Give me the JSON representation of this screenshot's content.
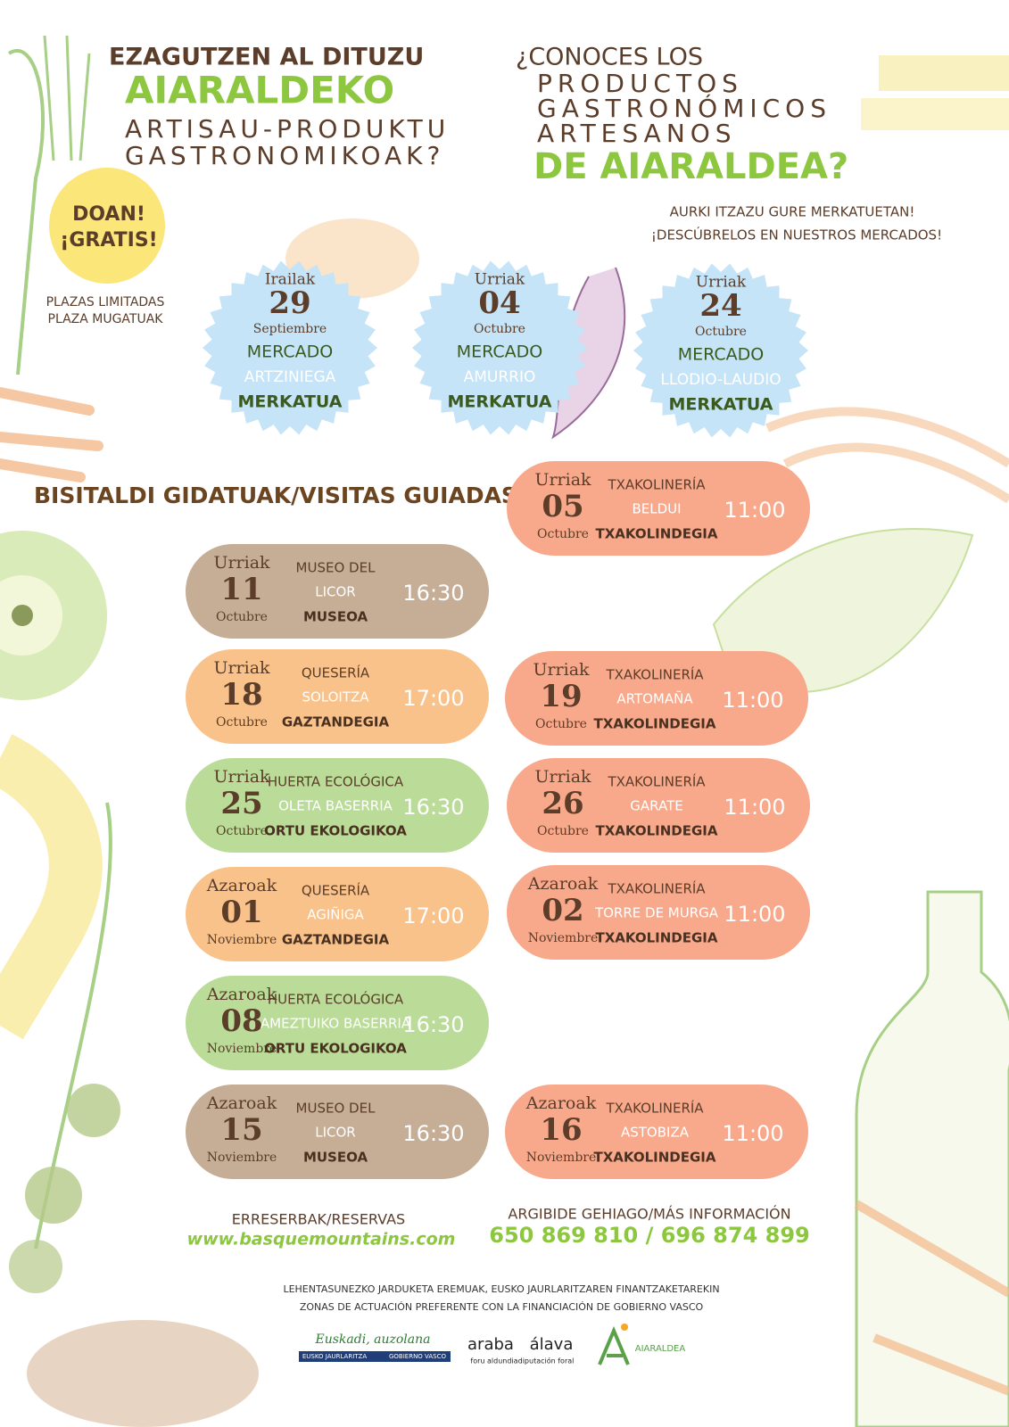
{
  "header": {
    "eu": {
      "line1": "EZAGUTZEN AL DITUZU",
      "line2": "AIARALDEKO",
      "line3": "ARTISAU-PRODUKTU",
      "line4": "GASTRONOMIKOAK?"
    },
    "es": {
      "line1": "¿CONOCES LOS",
      "line2": "PRODUCTOS",
      "line3": "GASTRONÓMICOS",
      "line4": "ARTESANOS",
      "line5": "DE AIARALDEA?"
    }
  },
  "badge": {
    "line1": "DOAN!",
    "line2": "¡GRATIS!"
  },
  "places_note": {
    "line1": "PLAZAS LIMITADAS",
    "line2": "PLAZA MUGATUAK"
  },
  "markets_intro": {
    "line1": "AURKI ITZAZU GURE MERKATUETAN!",
    "line2": "¡DESCÚBRELOS EN NUESTROS MERCADOS!"
  },
  "markets": [
    {
      "month_eu": "Irailak",
      "day": "29",
      "month_es": "Septiembre",
      "label_es": "MERCADO",
      "place": "ARTZINIEGA",
      "label_eu": "MERKATUA"
    },
    {
      "month_eu": "Urriak",
      "day": "04",
      "month_es": "Octubre",
      "label_es": "MERCADO",
      "place": "AMURRIO",
      "label_eu": "MERKATUA"
    },
    {
      "month_eu": "Urriak",
      "day": "24",
      "month_es": "Octubre",
      "label_es": "MERCADO",
      "place": "LLODIO-LAUDIO",
      "label_eu": "MERKATUA"
    }
  ],
  "visits_title": "BISITALDI GIDATUAK/VISITAS GUIADAS",
  "visits": [
    {
      "month_eu": "Urriak",
      "day": "05",
      "month_es": "Octubre",
      "type": "TXAKOLINERÍA",
      "place": "BELDUI",
      "label": "TXAKOLINDEGIA",
      "time": "11:00",
      "color": "#f8a98b"
    },
    {
      "month_eu": "Urriak",
      "day": "11",
      "month_es": "Octubre",
      "type": "MUSEO DEL",
      "place": "LICOR",
      "label": "MUSEOA",
      "time": "16:30",
      "color": "#c5ad96"
    },
    {
      "month_eu": "Urriak",
      "day": "18",
      "month_es": "Octubre",
      "type": "QUESERÍA",
      "place": "SOLOITZA",
      "label": "GAZTANDEGIA",
      "time": "17:00",
      "color": "#f9c28a"
    },
    {
      "month_eu": "Urriak",
      "day": "19",
      "month_es": "Octubre",
      "type": "TXAKOLINERÍA",
      "place": "ARTOMAÑA",
      "label": "TXAKOLINDEGIA",
      "time": "11:00",
      "color": "#f8a98b"
    },
    {
      "month_eu": "Urriak",
      "day": "25",
      "month_es": "Octubre",
      "type": "HUERTA ECOLÓGICA",
      "place": "OLETA BASERRIA",
      "label": "ORTU EKOLOGIKOA",
      "time": "16:30",
      "color": "#badc98"
    },
    {
      "month_eu": "Urriak",
      "day": "26",
      "month_es": "Octubre",
      "type": "TXAKOLINERÍA",
      "place": "GARATE",
      "label": "TXAKOLINDEGIA",
      "time": "11:00",
      "color": "#f8a98b"
    },
    {
      "month_eu": "Azaroak",
      "day": "01",
      "month_es": "Noviembre",
      "type": "QUESERÍA",
      "place": "AGIÑIGA",
      "label": "GAZTANDEGIA",
      "time": "17:00",
      "color": "#f9c28a"
    },
    {
      "month_eu": "Azaroak",
      "day": "02",
      "month_es": "Noviembre",
      "type": "TXAKOLINERÍA",
      "place": "TORRE DE MURGA",
      "label": "TXAKOLINDEGIA",
      "time": "11:00",
      "color": "#f8a98b"
    },
    {
      "month_eu": "Azaroak",
      "day": "08",
      "month_es": "Noviembre",
      "type": "HUERTA ECOLÓGICA",
      "place": "AMEZTUIKO BASERRIA",
      "label": "ORTU EKOLOGIKOA",
      "time": "16:30",
      "color": "#badc98"
    },
    {
      "month_eu": "Azaroak",
      "day": "15",
      "month_es": "Noviembre",
      "type": "MUSEO DEL",
      "place": "LICOR",
      "label": "MUSEOA",
      "time": "16:30",
      "color": "#c5ad96"
    },
    {
      "month_eu": "Azaroak",
      "day": "16",
      "month_es": "Noviembre",
      "type": "TXAKOLINERÍA",
      "place": "ASTOBIZA",
      "label": "TXAKOLINDEGIA",
      "time": "11:00",
      "color": "#f8a98b"
    }
  ],
  "reservations": {
    "label": "ERRESERBAK/RESERVAS",
    "url": "www.basquemountains.com"
  },
  "info": {
    "label": "ARGIBIDE GEHIAGO/MÁS INFORMACIÓN",
    "phones": "650 869 810 / 696 874 899"
  },
  "funding": {
    "line1": "LEHENTASUNEZKO JARDUKETA EREMUAK, EUSKO JAURLARITZAREN FINANTZAKETAREKIN",
    "line2": "ZONAS DE ACTUACIÓN PREFERENTE CON LA FINANCIACIÓN DE GOBIERNO VASCO"
  },
  "logos": {
    "euskadi": "Euskadi, auzolana",
    "eusko": "EUSKO JAURLARITZA",
    "gobierno": "GOBIERNO VASCO",
    "araba": "araba",
    "alava": "álava",
    "foru": "foru aldundia",
    "diputacion": "diputación foral",
    "aiaraldea": "AIARALDEA"
  }
}
